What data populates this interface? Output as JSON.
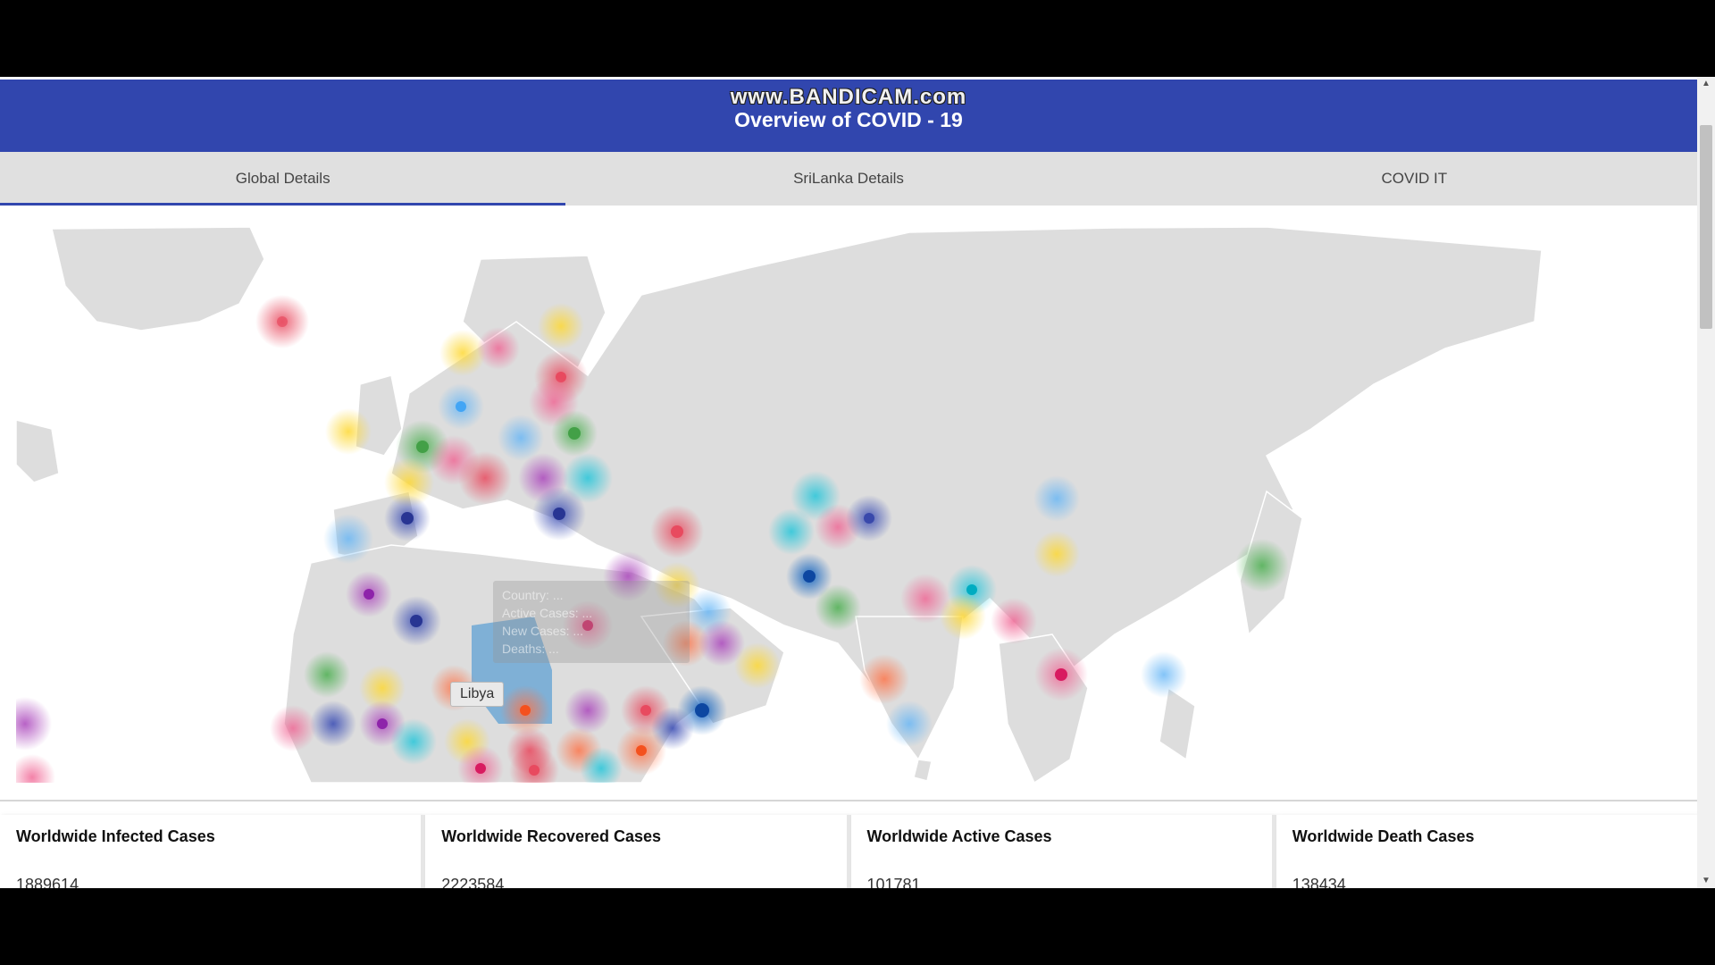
{
  "watermark": "www.BANDICAM.com",
  "header": {
    "title": "Overview of COVID - 19"
  },
  "tabs": [
    {
      "label": "Global Details",
      "active": true
    },
    {
      "label": "SriLanka Details",
      "active": false
    },
    {
      "label": "COVID IT",
      "active": false
    }
  ],
  "map": {
    "hover_label": "Libya",
    "ghost_popup": [
      "Country: ...",
      "Active Cases: ...",
      "New Cases: ...",
      "Deaths: ..."
    ],
    "land_color": "#dcdcdc",
    "highlight_color": "#7fb0d6",
    "bubble_colors": [
      "#e84a5f",
      "#3f51b5",
      "#4caf50",
      "#ffd54f",
      "#ff8a65",
      "#26c6da",
      "#ab47bc",
      "#90caf9",
      "#f48fb1",
      "#e57373"
    ]
  },
  "stats": [
    {
      "title": "Worldwide Infected Cases",
      "value": "1889614"
    },
    {
      "title": "Worldwide Recovered Cases",
      "value": "2223584"
    },
    {
      "title": "Worldwide Active Cases",
      "value": "101781"
    },
    {
      "title": "Worldwide Death Cases",
      "value": "138434"
    }
  ]
}
